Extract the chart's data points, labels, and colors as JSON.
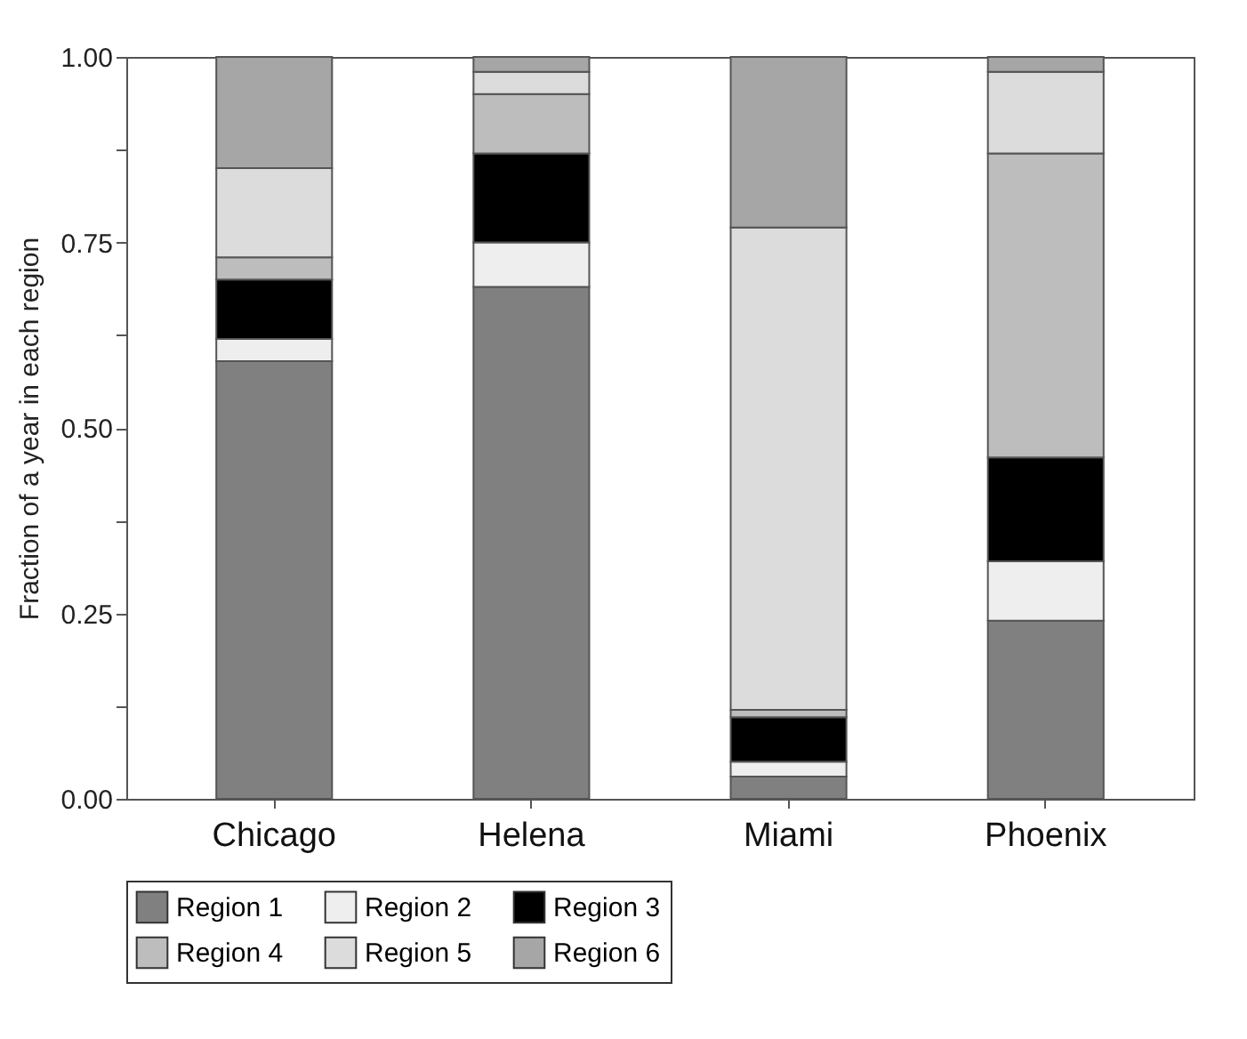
{
  "chart_data": {
    "type": "bar",
    "stacked": true,
    "ylabel": "Fraction of a year in each region",
    "categories": [
      "Chicago",
      "Helena",
      "Miami",
      "Phoenix"
    ],
    "series": [
      {
        "name": "Region 1",
        "color": "#808080",
        "values": [
          0.59,
          0.69,
          0.03,
          0.24
        ]
      },
      {
        "name": "Region 2",
        "color": "#eeeeee",
        "values": [
          0.03,
          0.06,
          0.02,
          0.08
        ]
      },
      {
        "name": "Region 3",
        "color": "#000000",
        "values": [
          0.08,
          0.12,
          0.06,
          0.14
        ]
      },
      {
        "name": "Region 4",
        "color": "#bdbdbd",
        "values": [
          0.03,
          0.08,
          0.01,
          0.41
        ]
      },
      {
        "name": "Region 5",
        "color": "#dcdcdc",
        "values": [
          0.12,
          0.03,
          0.65,
          0.11
        ]
      },
      {
        "name": "Region 6",
        "color": "#a6a6a6",
        "values": [
          0.15,
          0.02,
          0.23,
          0.02
        ]
      }
    ],
    "ylim": [
      0,
      1.0
    ],
    "yticks": [
      {
        "value": 0,
        "label": "0.00"
      },
      {
        "value": 0.125,
        "label": null
      },
      {
        "value": 0.25,
        "label": "0.25"
      },
      {
        "value": 0.375,
        "label": null
      },
      {
        "value": 0.5,
        "label": "0.50"
      },
      {
        "value": 0.625,
        "label": null
      },
      {
        "value": 0.75,
        "label": "0.75"
      },
      {
        "value": 0.875,
        "label": null
      },
      {
        "value": 1.0,
        "label": "1.00"
      }
    ],
    "legend": "bottom"
  }
}
